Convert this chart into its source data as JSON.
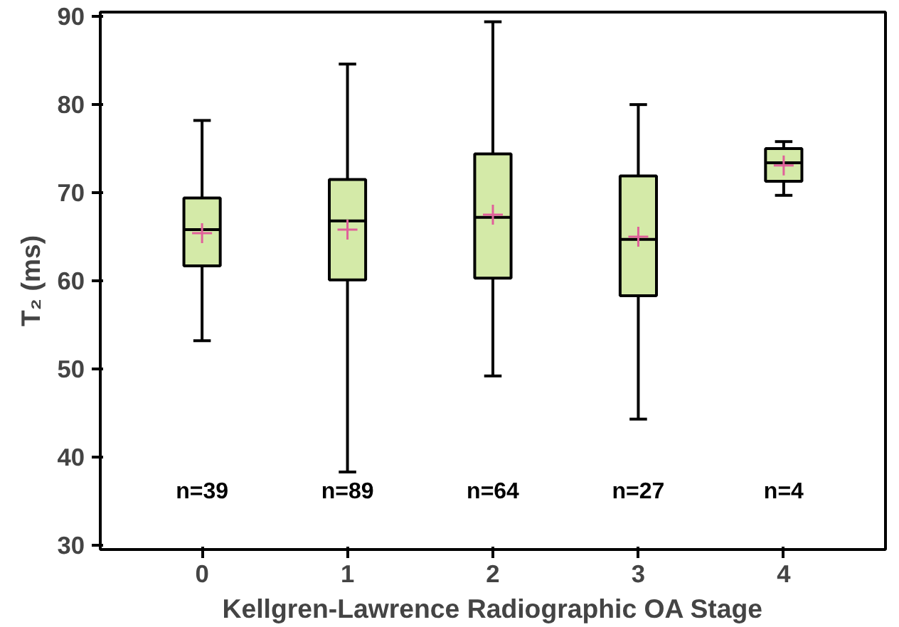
{
  "chart_data": {
    "type": "box",
    "xlabel": "Kellgren-Lawrence Radiographic OA Stage",
    "ylabel": "T₂ (ms)",
    "categories": [
      "0",
      "1",
      "2",
      "3",
      "4"
    ],
    "color": "#d4eaa8",
    "ylim": [
      29.5,
      90.5
    ],
    "yticks": [
      30,
      40,
      50,
      60,
      70,
      80,
      90
    ],
    "grid": false,
    "boxes": [
      {
        "low": 53.2,
        "q1": 61.7,
        "median": 65.8,
        "q3": 69.4,
        "high": 78.2,
        "mean": 65.4
      },
      {
        "low": 38.3,
        "q1": 60.1,
        "median": 66.8,
        "q3": 71.5,
        "high": 84.6,
        "mean": 65.8
      },
      {
        "low": 49.2,
        "q1": 60.3,
        "median": 67.2,
        "q3": 74.4,
        "high": 89.4,
        "mean": 67.5
      },
      {
        "low": 44.3,
        "q1": 58.3,
        "median": 64.7,
        "q3": 71.9,
        "high": 80.0,
        "mean": 65.0
      },
      {
        "low": 69.7,
        "q1": 71.3,
        "median": 73.4,
        "q3": 75.0,
        "high": 75.8,
        "mean": 73.1
      }
    ],
    "annotations": [
      "n=39",
      "n=89",
      "n=64",
      "n=27",
      "n=4"
    ]
  }
}
